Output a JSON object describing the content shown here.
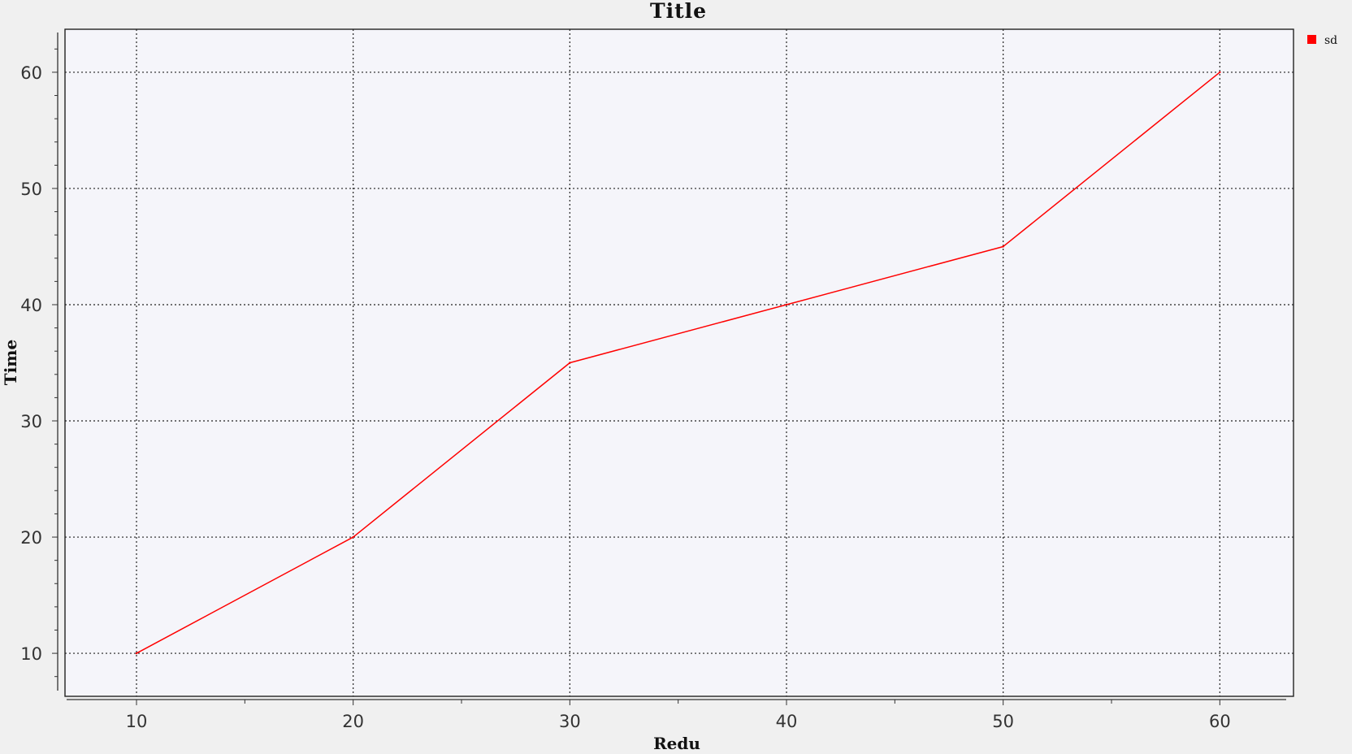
{
  "chart_data": {
    "type": "line",
    "title": "Title",
    "xlabel": "Redu",
    "ylabel": "Time",
    "x": [
      10,
      20,
      30,
      40,
      50,
      60
    ],
    "series": [
      {
        "name": "sd",
        "color": "#ff0000",
        "values": [
          10,
          20,
          35,
          40,
          45,
          60
        ]
      }
    ],
    "xticks": [
      "10",
      "20",
      "30",
      "40",
      "50",
      "60"
    ],
    "yticks": [
      "10",
      "20",
      "30",
      "40",
      "50",
      "60"
    ],
    "xlim": [
      6.7,
      63.4
    ],
    "ylim": [
      6.3,
      63.7
    ],
    "grid": true,
    "legend_position": "top-right",
    "background_color": "#f5f5fa",
    "page_background": "#f0f0f0"
  }
}
